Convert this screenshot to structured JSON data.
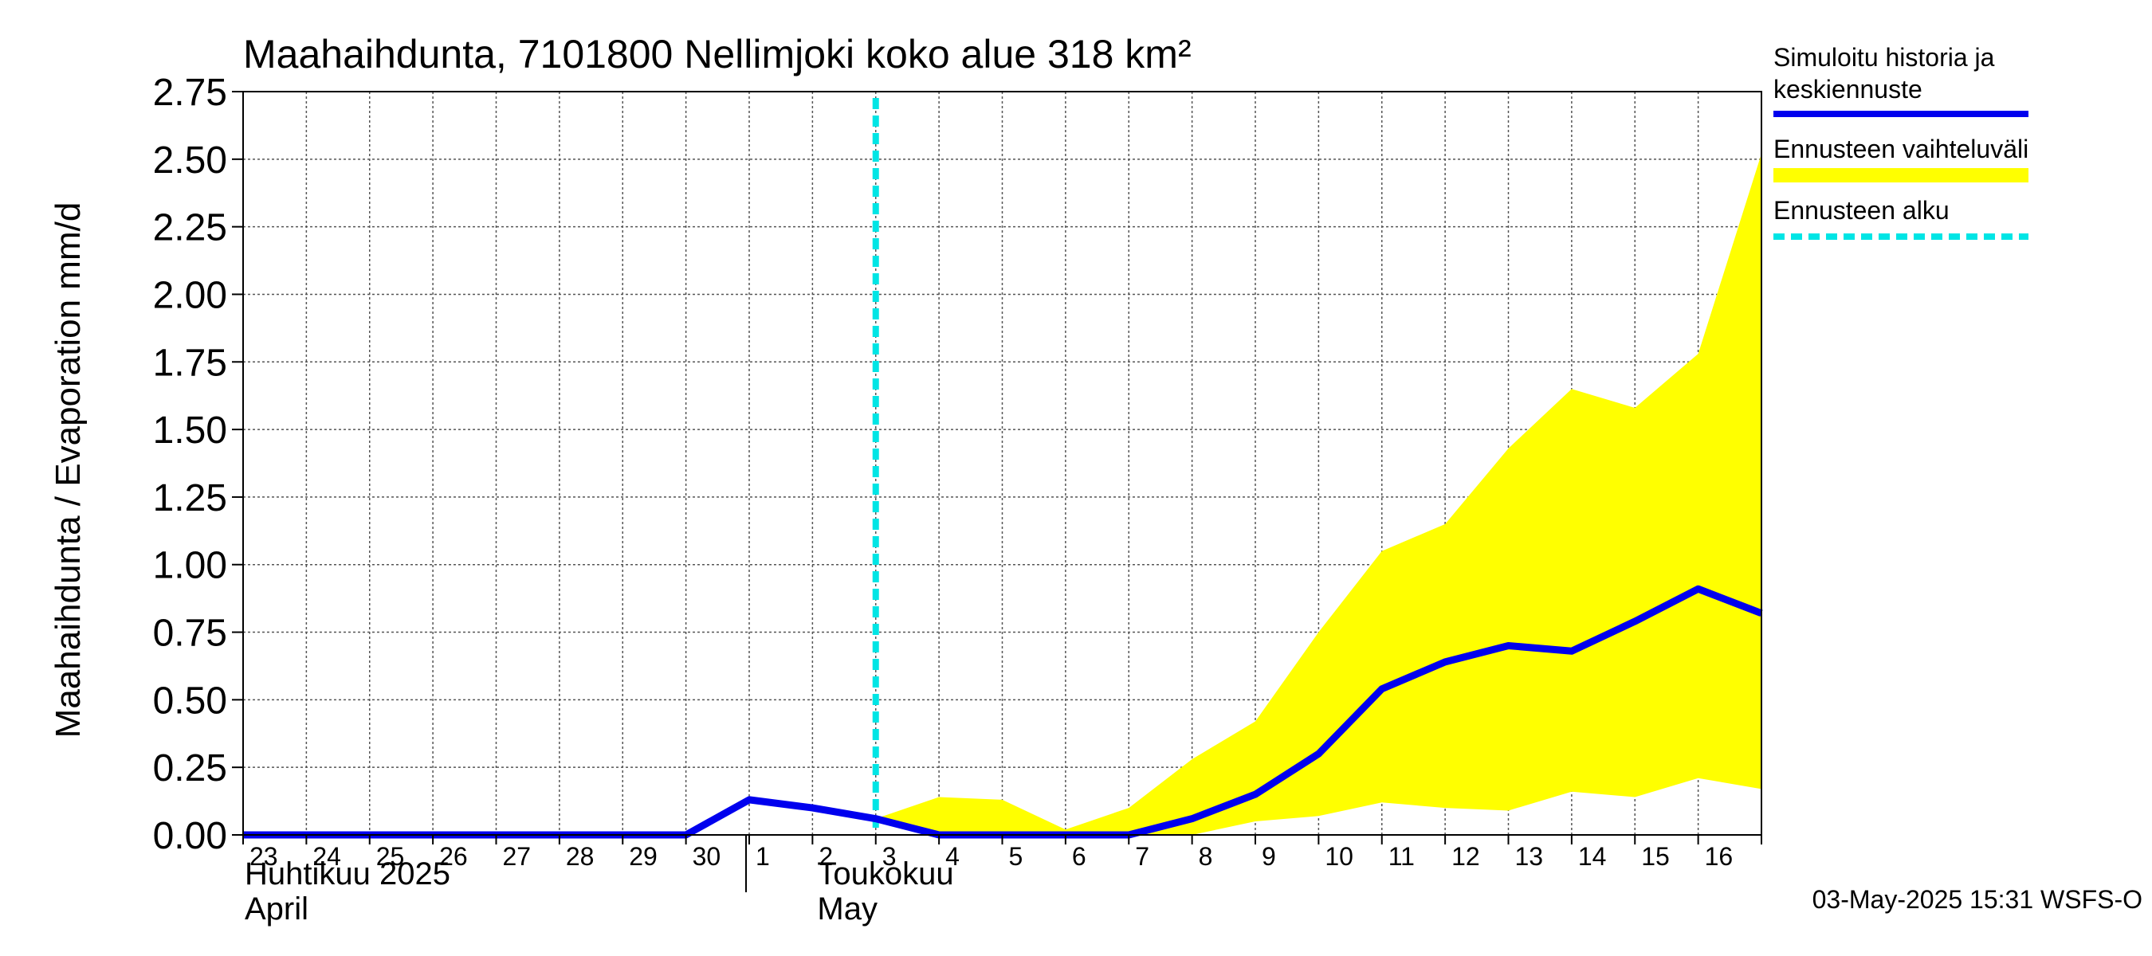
{
  "chart_data": {
    "type": "area",
    "title": "Maahaihdunta, 7101800 Nellimjoki koko alue 318 km²",
    "ylabel": "Maahaihdunta / Evaporation   mm/d",
    "ylim": [
      0,
      2.75
    ],
    "yticks": [
      "0.00",
      "0.25",
      "0.50",
      "0.75",
      "1.00",
      "1.25",
      "1.50",
      "1.75",
      "2.00",
      "2.25",
      "2.50",
      "2.75"
    ],
    "grid": true,
    "x": [
      "2025-04-23",
      "2025-04-24",
      "2025-04-25",
      "2025-04-26",
      "2025-04-27",
      "2025-04-28",
      "2025-04-29",
      "2025-04-30",
      "2025-05-01",
      "2025-05-02",
      "2025-05-03",
      "2025-05-04",
      "2025-05-05",
      "2025-05-06",
      "2025-05-07",
      "2025-05-08",
      "2025-05-09",
      "2025-05-10",
      "2025-05-11",
      "2025-05-12",
      "2025-05-13",
      "2025-05-14",
      "2025-05-15",
      "2025-05-16",
      "2025-05-17"
    ],
    "xtick_labels": [
      "23",
      "24",
      "25",
      "26",
      "27",
      "28",
      "29",
      "30",
      "1",
      "2",
      "3",
      "4",
      "5",
      "6",
      "7",
      "8",
      "9",
      "10",
      "11",
      "12",
      "13",
      "14",
      "15",
      "16"
    ],
    "month_labels": [
      {
        "line1": "Huhtikuu  2025",
        "line2": "April"
      },
      {
        "line1": "Toukokuu",
        "line2": "May"
      }
    ],
    "series": [
      {
        "name": "Simuloitu historia ja keskiennuste",
        "color": "#0000ee",
        "values": [
          0,
          0,
          0,
          0,
          0,
          0,
          0,
          0,
          0.13,
          0.1,
          0.06,
          0,
          0,
          0,
          0,
          0.06,
          0.15,
          0.3,
          0.54,
          0.64,
          0.7,
          0.68,
          0.79,
          0.91,
          0.82
        ]
      },
      {
        "name": "Ennusteen vaihteluväli",
        "color": "#ffff00",
        "x_start": "2025-05-03",
        "upper": [
          0.06,
          0.14,
          0.13,
          0.02,
          0.1,
          0.28,
          0.42,
          0.75,
          1.05,
          1.15,
          1.43,
          1.65,
          1.58,
          1.78,
          2.52
        ],
        "lower": [
          0.05,
          0,
          0,
          0,
          0,
          0,
          0.05,
          0.07,
          0.12,
          0.1,
          0.09,
          0.16,
          0.14,
          0.21,
          0.17
        ]
      }
    ],
    "forecast_start": {
      "name": "Ennusteen alku",
      "x": "2025-05-03",
      "color": "#00e5e5"
    },
    "legend": {
      "position": "right",
      "entries": [
        {
          "line1": "Simuloitu historia ja",
          "line2": "keskiennuste",
          "color": "#0000ee",
          "style": "solid"
        },
        {
          "line1": "Ennusteen vaihteluväli",
          "line2": "",
          "color": "#ffff00",
          "style": "band"
        },
        {
          "line1": "Ennusteen alku",
          "line2": "",
          "color": "#00e5e5",
          "style": "dashed"
        }
      ]
    },
    "footer": "03-May-2025 15:31 WSFS-O"
  }
}
